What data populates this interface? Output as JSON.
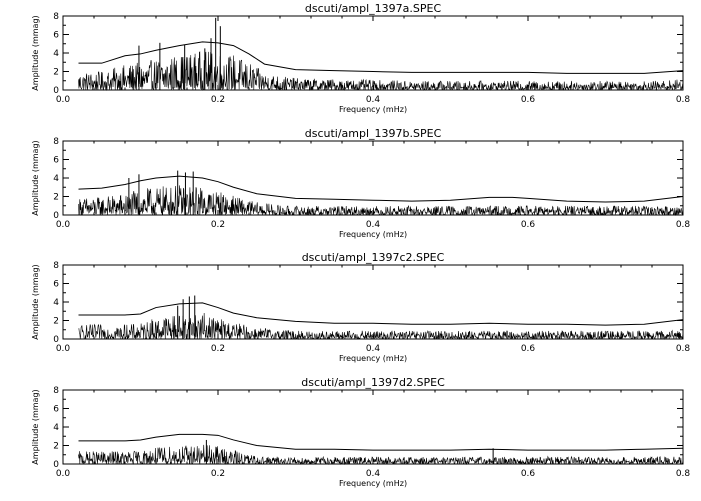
{
  "chart_data": [
    {
      "type": "line",
      "title": "dscuti/ampl_1397a.SPEC",
      "xlabel": "Frequency (mHz)",
      "ylabel": "Amplitude (mmag)",
      "xlim": [
        0.0,
        0.8
      ],
      "ylim": [
        0,
        8
      ],
      "xticks": [
        "0.0",
        "0.2",
        "0.4",
        "0.6",
        "0.8"
      ],
      "yticks": [
        "0",
        "2",
        "4",
        "6",
        "8"
      ],
      "peaks": [
        {
          "x": 0.098,
          "y": 4.8
        },
        {
          "x": 0.125,
          "y": 5.1
        },
        {
          "x": 0.157,
          "y": 4.9
        },
        {
          "x": 0.183,
          "y": 4.5
        },
        {
          "x": 0.197,
          "y": 7.8
        },
        {
          "x": 0.203,
          "y": 6.9
        },
        {
          "x": 0.191,
          "y": 5.6
        }
      ],
      "noise_level": 1.0,
      "series": [
        {
          "x": [
            0.02,
            0.05,
            0.08,
            0.1,
            0.12,
            0.15,
            0.18,
            0.2,
            0.22,
            0.24,
            0.26,
            0.3,
            0.35,
            0.4,
            0.45,
            0.5,
            0.55,
            0.6,
            0.65,
            0.7,
            0.75,
            0.8
          ],
          "y": [
            2.9,
            2.9,
            3.7,
            3.9,
            4.3,
            4.8,
            5.2,
            5.1,
            4.8,
            3.9,
            2.8,
            2.2,
            2.1,
            2.0,
            1.9,
            1.9,
            1.9,
            1.9,
            1.8,
            1.8,
            1.8,
            2.1
          ]
        }
      ]
    },
    {
      "type": "line",
      "title": "dscuti/ampl_1397b.SPEC",
      "xlabel": "Frequency (mHz)",
      "ylabel": "Amplitude (mmag)",
      "xlim": [
        0.0,
        0.8
      ],
      "ylim": [
        0,
        8
      ],
      "xticks": [
        "0.0",
        "0.2",
        "0.4",
        "0.6",
        "0.8"
      ],
      "yticks": [
        "0",
        "2",
        "4",
        "6",
        "8"
      ],
      "peaks": [
        {
          "x": 0.085,
          "y": 4.0
        },
        {
          "x": 0.098,
          "y": 4.4
        },
        {
          "x": 0.148,
          "y": 4.8
        },
        {
          "x": 0.158,
          "y": 4.6
        },
        {
          "x": 0.168,
          "y": 4.7
        }
      ],
      "noise_level": 1.0,
      "series": [
        {
          "x": [
            0.02,
            0.05,
            0.08,
            0.1,
            0.12,
            0.15,
            0.18,
            0.2,
            0.22,
            0.25,
            0.3,
            0.35,
            0.4,
            0.45,
            0.5,
            0.55,
            0.58,
            0.6,
            0.65,
            0.7,
            0.75,
            0.8
          ],
          "y": [
            2.8,
            2.9,
            3.3,
            3.7,
            4.0,
            4.2,
            4.0,
            3.6,
            3.0,
            2.3,
            1.8,
            1.7,
            1.6,
            1.5,
            1.6,
            1.9,
            1.9,
            1.8,
            1.5,
            1.4,
            1.5,
            2.0
          ]
        }
      ]
    },
    {
      "type": "line",
      "title": "dscuti/ampl_1397c2.SPEC",
      "xlabel": "Frequency (mHz)",
      "ylabel": "Amplitude (mmag)",
      "xlim": [
        0.0,
        0.8
      ],
      "ylim": [
        0,
        8
      ],
      "xticks": [
        "0.0",
        "0.2",
        "0.4",
        "0.6",
        "0.8"
      ],
      "yticks": [
        "0",
        "2",
        "4",
        "6",
        "8"
      ],
      "peaks": [
        {
          "x": 0.155,
          "y": 4.3
        },
        {
          "x": 0.163,
          "y": 4.6
        },
        {
          "x": 0.17,
          "y": 4.7
        },
        {
          "x": 0.148,
          "y": 3.6
        }
      ],
      "noise_level": 0.9,
      "series": [
        {
          "x": [
            0.02,
            0.05,
            0.08,
            0.1,
            0.12,
            0.15,
            0.18,
            0.2,
            0.22,
            0.25,
            0.3,
            0.35,
            0.4,
            0.45,
            0.5,
            0.55,
            0.6,
            0.65,
            0.7,
            0.75,
            0.8
          ],
          "y": [
            2.6,
            2.6,
            2.6,
            2.7,
            3.4,
            3.8,
            3.9,
            3.4,
            2.8,
            2.3,
            1.9,
            1.7,
            1.7,
            1.6,
            1.6,
            1.7,
            1.6,
            1.6,
            1.5,
            1.6,
            2.1
          ]
        }
      ]
    },
    {
      "type": "line",
      "title": "dscuti/ampl_1397d2.SPEC",
      "xlabel": "Frequency (mHz)",
      "ylabel": "Amplitude (mmag)",
      "xlim": [
        0.0,
        0.8
      ],
      "ylim": [
        0,
        8
      ],
      "xticks": [
        "0.0",
        "0.2",
        "0.4",
        "0.6",
        "0.8"
      ],
      "yticks": [
        "0",
        "2",
        "4",
        "6",
        "8"
      ],
      "peaks": [
        {
          "x": 0.185,
          "y": 2.6
        },
        {
          "x": 0.555,
          "y": 1.7
        }
      ],
      "noise_level": 0.8,
      "series": [
        {
          "x": [
            0.02,
            0.05,
            0.08,
            0.1,
            0.12,
            0.15,
            0.18,
            0.2,
            0.22,
            0.25,
            0.3,
            0.35,
            0.4,
            0.45,
            0.5,
            0.55,
            0.6,
            0.65,
            0.7,
            0.75,
            0.8
          ],
          "y": [
            2.5,
            2.5,
            2.5,
            2.6,
            2.9,
            3.2,
            3.2,
            3.1,
            2.6,
            2.0,
            1.6,
            1.6,
            1.5,
            1.5,
            1.5,
            1.6,
            1.5,
            1.5,
            1.5,
            1.6,
            1.7
          ]
        }
      ]
    }
  ]
}
